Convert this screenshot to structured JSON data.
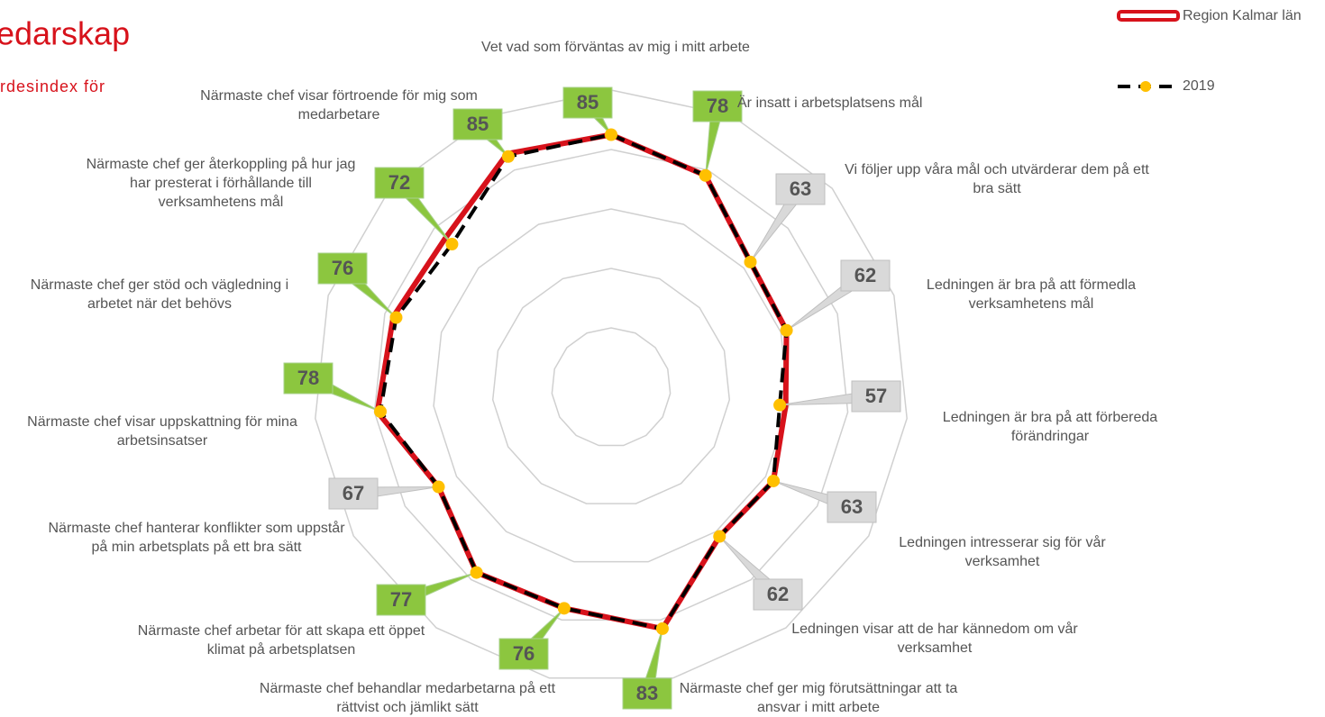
{
  "chart_data": {
    "type": "radar",
    "title": "edarskap",
    "subtitle": "rdesindex för",
    "categories": [
      "Vet vad som förväntas av mig i mitt arbete",
      "Är insatt i arbetsplatsens mål",
      "Vi följer upp våra mål och utvärderar dem på ett bra sätt",
      "Ledningen är bra på att förmedla verksamhetens mål",
      "Ledningen är bra på att förbereda förändringar",
      "Ledningen intresserar sig för vår verksamhet",
      "Ledningen visar att de har kännedom om vår verksamhet",
      "Närmaste chef ger mig förutsättningar att ta ansvar i mitt arbete",
      "Närmaste chef behandlar medarbetarna på ett rättvist och jämlikt sätt",
      "Närmaste chef arbetar för att skapa ett öppet klimat på arbetsplatsen",
      "Närmaste chef hanterar konflikter som uppstår på min arbetsplats på ett bra sätt",
      "Närmaste chef visar uppskattning för mina arbetsinsatser",
      "Närmaste chef ger stöd och vägledning i arbetet när det behövs",
      "Närmaste chef ger återkoppling på hur jag har presterat i förhållande till verksamhetens mål",
      "Närmaste chef visar förtroende för mig som medarbetare"
    ],
    "series": [
      {
        "name": "Region Kalmar län",
        "color": "#d7121b",
        "values": [
          85,
          78,
          63,
          62,
          59,
          63,
          62,
          83,
          76,
          77,
          67,
          79,
          77,
          75,
          86
        ]
      },
      {
        "name": "2019",
        "color": "#000000",
        "marker_color": "#ffc000",
        "values": [
          85,
          78,
          63,
          62,
          57,
          63,
          62,
          83,
          76,
          77,
          67,
          78,
          76,
          72,
          85
        ]
      }
    ],
    "label_colors": [
      "#8cc63f",
      "#8cc63f",
      "#d9d9d9",
      "#d9d9d9",
      "#d9d9d9",
      "#d9d9d9",
      "#d9d9d9",
      "#8cc63f",
      "#8cc63f",
      "#8cc63f",
      "#d9d9d9",
      "#8cc63f",
      "#8cc63f",
      "#8cc63f",
      "#8cc63f"
    ],
    "ylim": [
      0,
      100
    ],
    "yticks": [
      20,
      40,
      60,
      80,
      100
    ],
    "grid": true,
    "legend": "top-right"
  }
}
